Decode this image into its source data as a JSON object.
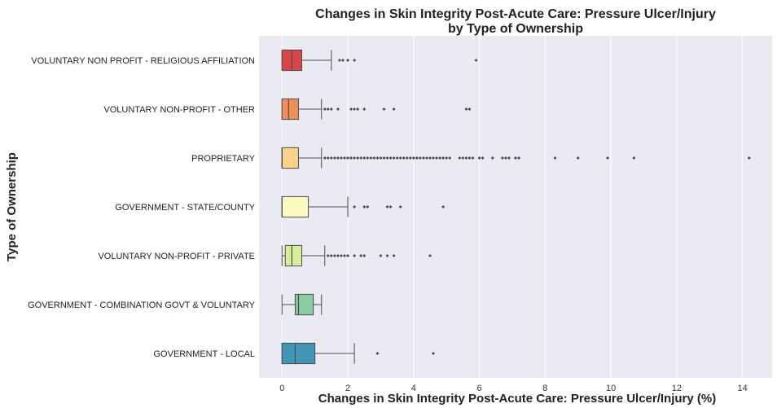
{
  "chart_data": {
    "type": "box",
    "orientation": "horizontal",
    "title_line1": "Changes in Skin Integrity Post-Acute Care: Pressure Ulcer/Injury",
    "title_line2": "by Type of Ownership",
    "xlabel": "Changes in Skin Integrity Post-Acute Care: Pressure Ulcer/Injury (%)",
    "ylabel": "Type of Ownership",
    "xlim": [
      -0.7,
      14.9
    ],
    "xticks": [
      0,
      2,
      4,
      6,
      8,
      10,
      12,
      14
    ],
    "xtick_labels": [
      "0",
      "2",
      "4",
      "6",
      "8",
      "10",
      "12",
      "14"
    ],
    "grid": true,
    "background": "#eaeaf2",
    "categories": [
      {
        "label": "VOLUNTARY NON PROFIT - RELIGIOUS AFFILIATION",
        "color": "#d7474a",
        "whisker_low": 0,
        "q1": 0,
        "median": 0.3,
        "q3": 0.6,
        "whisker_high": 1.5,
        "outliers": [
          1.75,
          1.85,
          2.0,
          2.2,
          5.9
        ]
      },
      {
        "label": "VOLUNTARY NON-PROFIT - OTHER",
        "color": "#f08d58",
        "whisker_low": 0,
        "q1": 0,
        "median": 0.2,
        "q3": 0.5,
        "whisker_high": 1.2,
        "outliers": [
          1.3,
          1.4,
          1.5,
          1.7,
          2.1,
          2.2,
          2.3,
          2.5,
          3.1,
          3.4,
          5.6,
          5.7
        ]
      },
      {
        "label": "PROPRIETARY",
        "color": "#f9d389",
        "whisker_low": 0,
        "q1": 0,
        "median": 0.0,
        "q3": 0.5,
        "whisker_high": 1.2,
        "outliers": [
          1.3,
          1.4,
          1.5,
          1.6,
          1.7,
          1.8,
          1.9,
          2.0,
          2.1,
          2.2,
          2.3,
          2.4,
          2.5,
          2.6,
          2.7,
          2.8,
          2.9,
          3.0,
          3.1,
          3.2,
          3.3,
          3.4,
          3.5,
          3.6,
          3.7,
          3.8,
          3.9,
          4.0,
          4.1,
          4.2,
          4.3,
          4.4,
          4.5,
          4.6,
          4.7,
          4.8,
          4.9,
          5.0,
          5.1,
          5.4,
          5.5,
          5.6,
          5.7,
          5.8,
          6.0,
          6.1,
          6.4,
          6.7,
          6.8,
          6.9,
          7.1,
          7.2,
          8.3,
          9.0,
          9.9,
          10.7,
          14.2
        ]
      },
      {
        "label": "GOVERNMENT - STATE/COUNTY",
        "color": "#fcfbbd",
        "whisker_low": 0,
        "q1": 0,
        "median": 0.0,
        "q3": 0.8,
        "whisker_high": 2.0,
        "outliers": [
          2.2,
          2.5,
          2.6,
          3.2,
          3.3,
          3.6,
          4.9
        ]
      },
      {
        "label": "VOLUNTARY NON-PROFIT - PRIVATE",
        "color": "#d8ee9b",
        "whisker_low": 0,
        "q1": 0.1,
        "median": 0.3,
        "q3": 0.6,
        "whisker_high": 1.3,
        "outliers": [
          1.4,
          1.5,
          1.6,
          1.7,
          1.8,
          1.9,
          2.0,
          2.2,
          2.4,
          2.5,
          3.0,
          3.2,
          3.4,
          4.5
        ]
      },
      {
        "label": "GOVERNMENT - COMBINATION GOVT & VOLUNTARY",
        "color": "#88cca4",
        "whisker_low": 0,
        "q1": 0.4,
        "median": 0.5,
        "q3": 0.95,
        "whisker_high": 1.2,
        "outliers": []
      },
      {
        "label": "GOVERNMENT - LOCAL",
        "color": "#4196b7",
        "whisker_low": 0,
        "q1": 0,
        "median": 0.4,
        "q3": 1.0,
        "whisker_high": 2.2,
        "outliers": [
          2.9,
          4.6
        ]
      }
    ]
  }
}
